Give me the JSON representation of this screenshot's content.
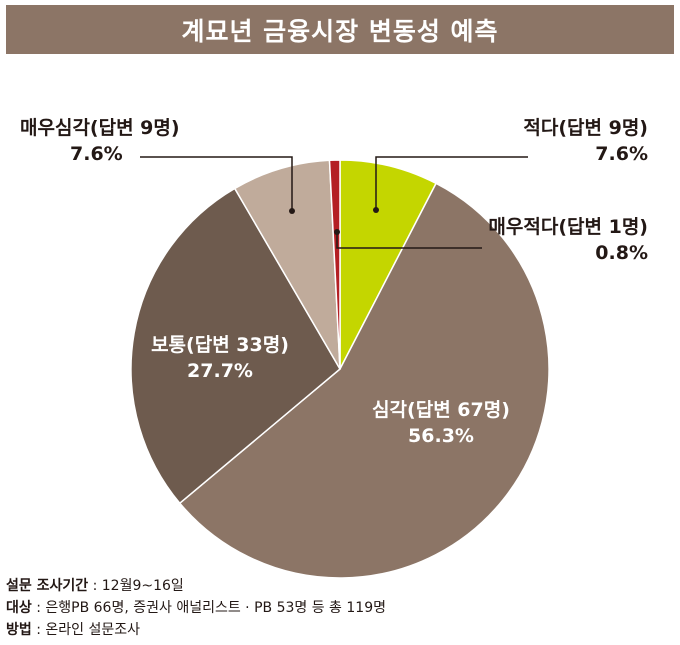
{
  "title": "계묘년 금융시장 변동성 예측",
  "chart_data": {
    "type": "pie",
    "start_angle_deg": 0,
    "direction": "clockwise",
    "slices": [
      {
        "label": "적다(답변 9명)",
        "value": 7.6,
        "value_label": "7.6%",
        "color": "#c4d600"
      },
      {
        "label": "심각(답변 67명)",
        "value": 56.3,
        "value_label": "56.3%",
        "color": "#8c7566"
      },
      {
        "label": "보통(답변 33명)",
        "value": 27.7,
        "value_label": "27.7%",
        "color": "#6e5b4e"
      },
      {
        "label": "매우심각(답변 9명)",
        "value": 7.6,
        "value_label": "7.6%",
        "color": "#c0ab9b"
      },
      {
        "label": "매우적다(답변 1명)",
        "value": 0.8,
        "value_label": "0.8%",
        "color": "#b41f24"
      }
    ]
  },
  "footer": {
    "period_key": "설문 조사기간",
    "period_value": " : 12월9~16일",
    "target_key": "대상",
    "target_value": " : 은행PB 66명, 증권사 애널리스트 · PB 53명 등 총 119명",
    "method_key": "방법",
    "method_value": " : 온라인 설문조사"
  }
}
